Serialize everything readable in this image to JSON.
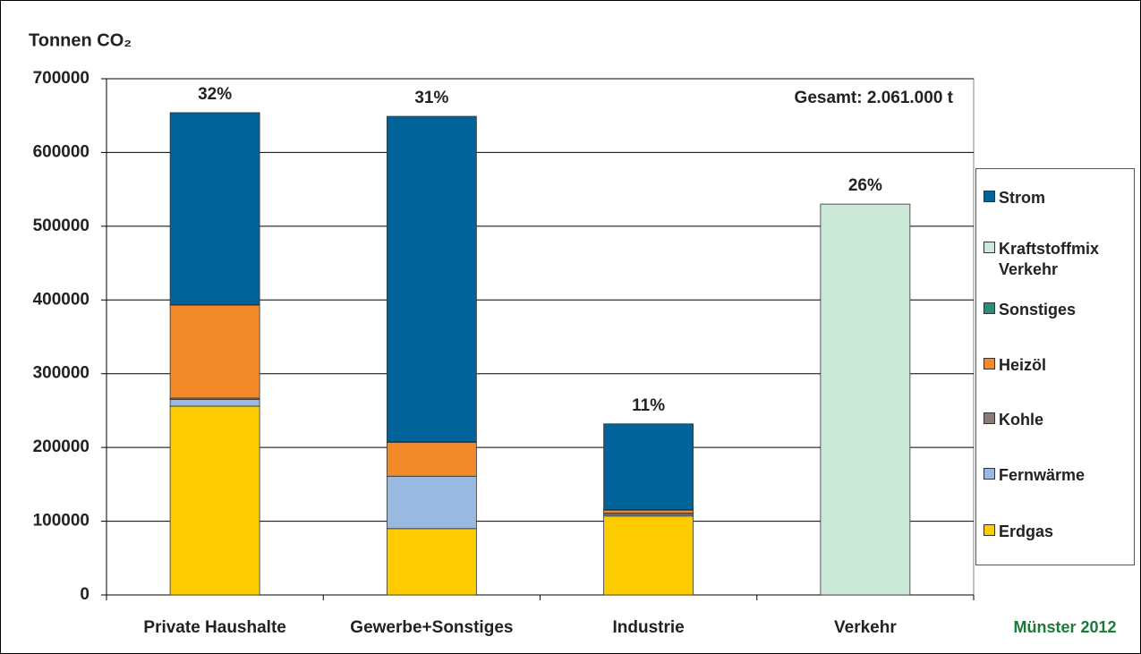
{
  "chart_data": {
    "type": "stacked_bar",
    "title": "Tonnen CO₂",
    "categories": [
      "Private Haushalte",
      "Gewerbe+Sonstiges",
      "Industrie",
      "Verkehr"
    ],
    "series": [
      {
        "name": "Erdgas",
        "color": "#fccc00",
        "values": [
          256000,
          90000,
          107000,
          0
        ]
      },
      {
        "name": "Fernwärme",
        "color": "#99b9e0",
        "values": [
          9000,
          71000,
          2000,
          0
        ]
      },
      {
        "name": "Kohle",
        "color": "#8a7a78",
        "values": [
          2000,
          0,
          2000,
          0
        ]
      },
      {
        "name": "Heizöl",
        "color": "#f28a2a",
        "values": [
          126000,
          46000,
          4000,
          0
        ]
      },
      {
        "name": "Sonstiges",
        "color": "#2e8b7a",
        "values": [
          1000,
          1000,
          1000,
          0
        ]
      },
      {
        "name": "Kraftstoffmix Verkehr",
        "color": "#cce8d8",
        "values": [
          0,
          0,
          0,
          530000
        ]
      },
      {
        "name": "Strom",
        "color": "#00639a",
        "values": [
          260000,
          441000,
          116000,
          0
        ]
      }
    ],
    "share_labels": [
      "32%",
      "31%",
      "11%",
      "26%"
    ],
    "total_annotation": "Gesamt: 2.061.000 t",
    "footer": "Münster 2012",
    "ylim": [
      0,
      700000
    ],
    "yticks": [
      0,
      100000,
      200000,
      300000,
      400000,
      500000,
      600000,
      700000
    ],
    "grid": true
  }
}
